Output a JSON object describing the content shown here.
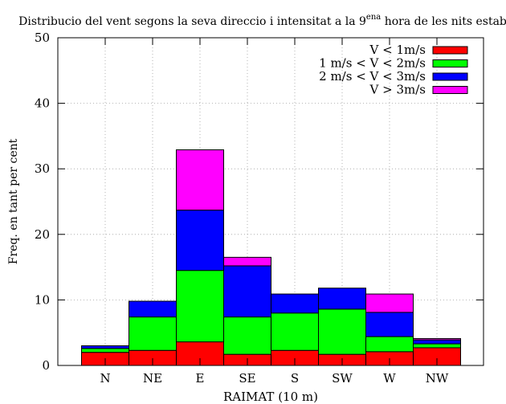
{
  "chart_data": {
    "type": "bar",
    "stacked": true,
    "title": {
      "main": "Distribucio del vent segons la seva direccio i intensitat a la 9",
      "sup": "ena",
      "tail": " hora de les nits estables"
    },
    "xlabel": "RAIMAT (10 m)",
    "ylabel": "Freq. en tant per cent",
    "ylim": [
      0,
      50
    ],
    "yticks": [
      0,
      10,
      20,
      30,
      40,
      50
    ],
    "grid": true,
    "legend_position": "top-right",
    "categories": [
      "N",
      "NE",
      "E",
      "SE",
      "S",
      "SW",
      "W",
      "NW"
    ],
    "series": [
      {
        "name": "V < 1m/s",
        "color": "#ff0000",
        "values": [
          2.0,
          2.3,
          3.6,
          1.7,
          2.3,
          1.7,
          2.1,
          2.7
        ]
      },
      {
        "name": "1 m/s < V < 2m/s",
        "color": "#00ff00",
        "values": [
          0.6,
          5.1,
          10.9,
          5.7,
          5.7,
          6.9,
          2.3,
          0.6
        ]
      },
      {
        "name": "2 m/s < V < 3m/s",
        "color": "#0000ff",
        "values": [
          0.4,
          2.4,
          9.2,
          7.8,
          2.9,
          3.2,
          3.7,
          0.6
        ]
      },
      {
        "name": "V > 3m/s",
        "color": "#ff00ff",
        "values": [
          0.0,
          0.0,
          9.2,
          1.3,
          0.0,
          0.0,
          2.8,
          0.2
        ]
      }
    ]
  }
}
